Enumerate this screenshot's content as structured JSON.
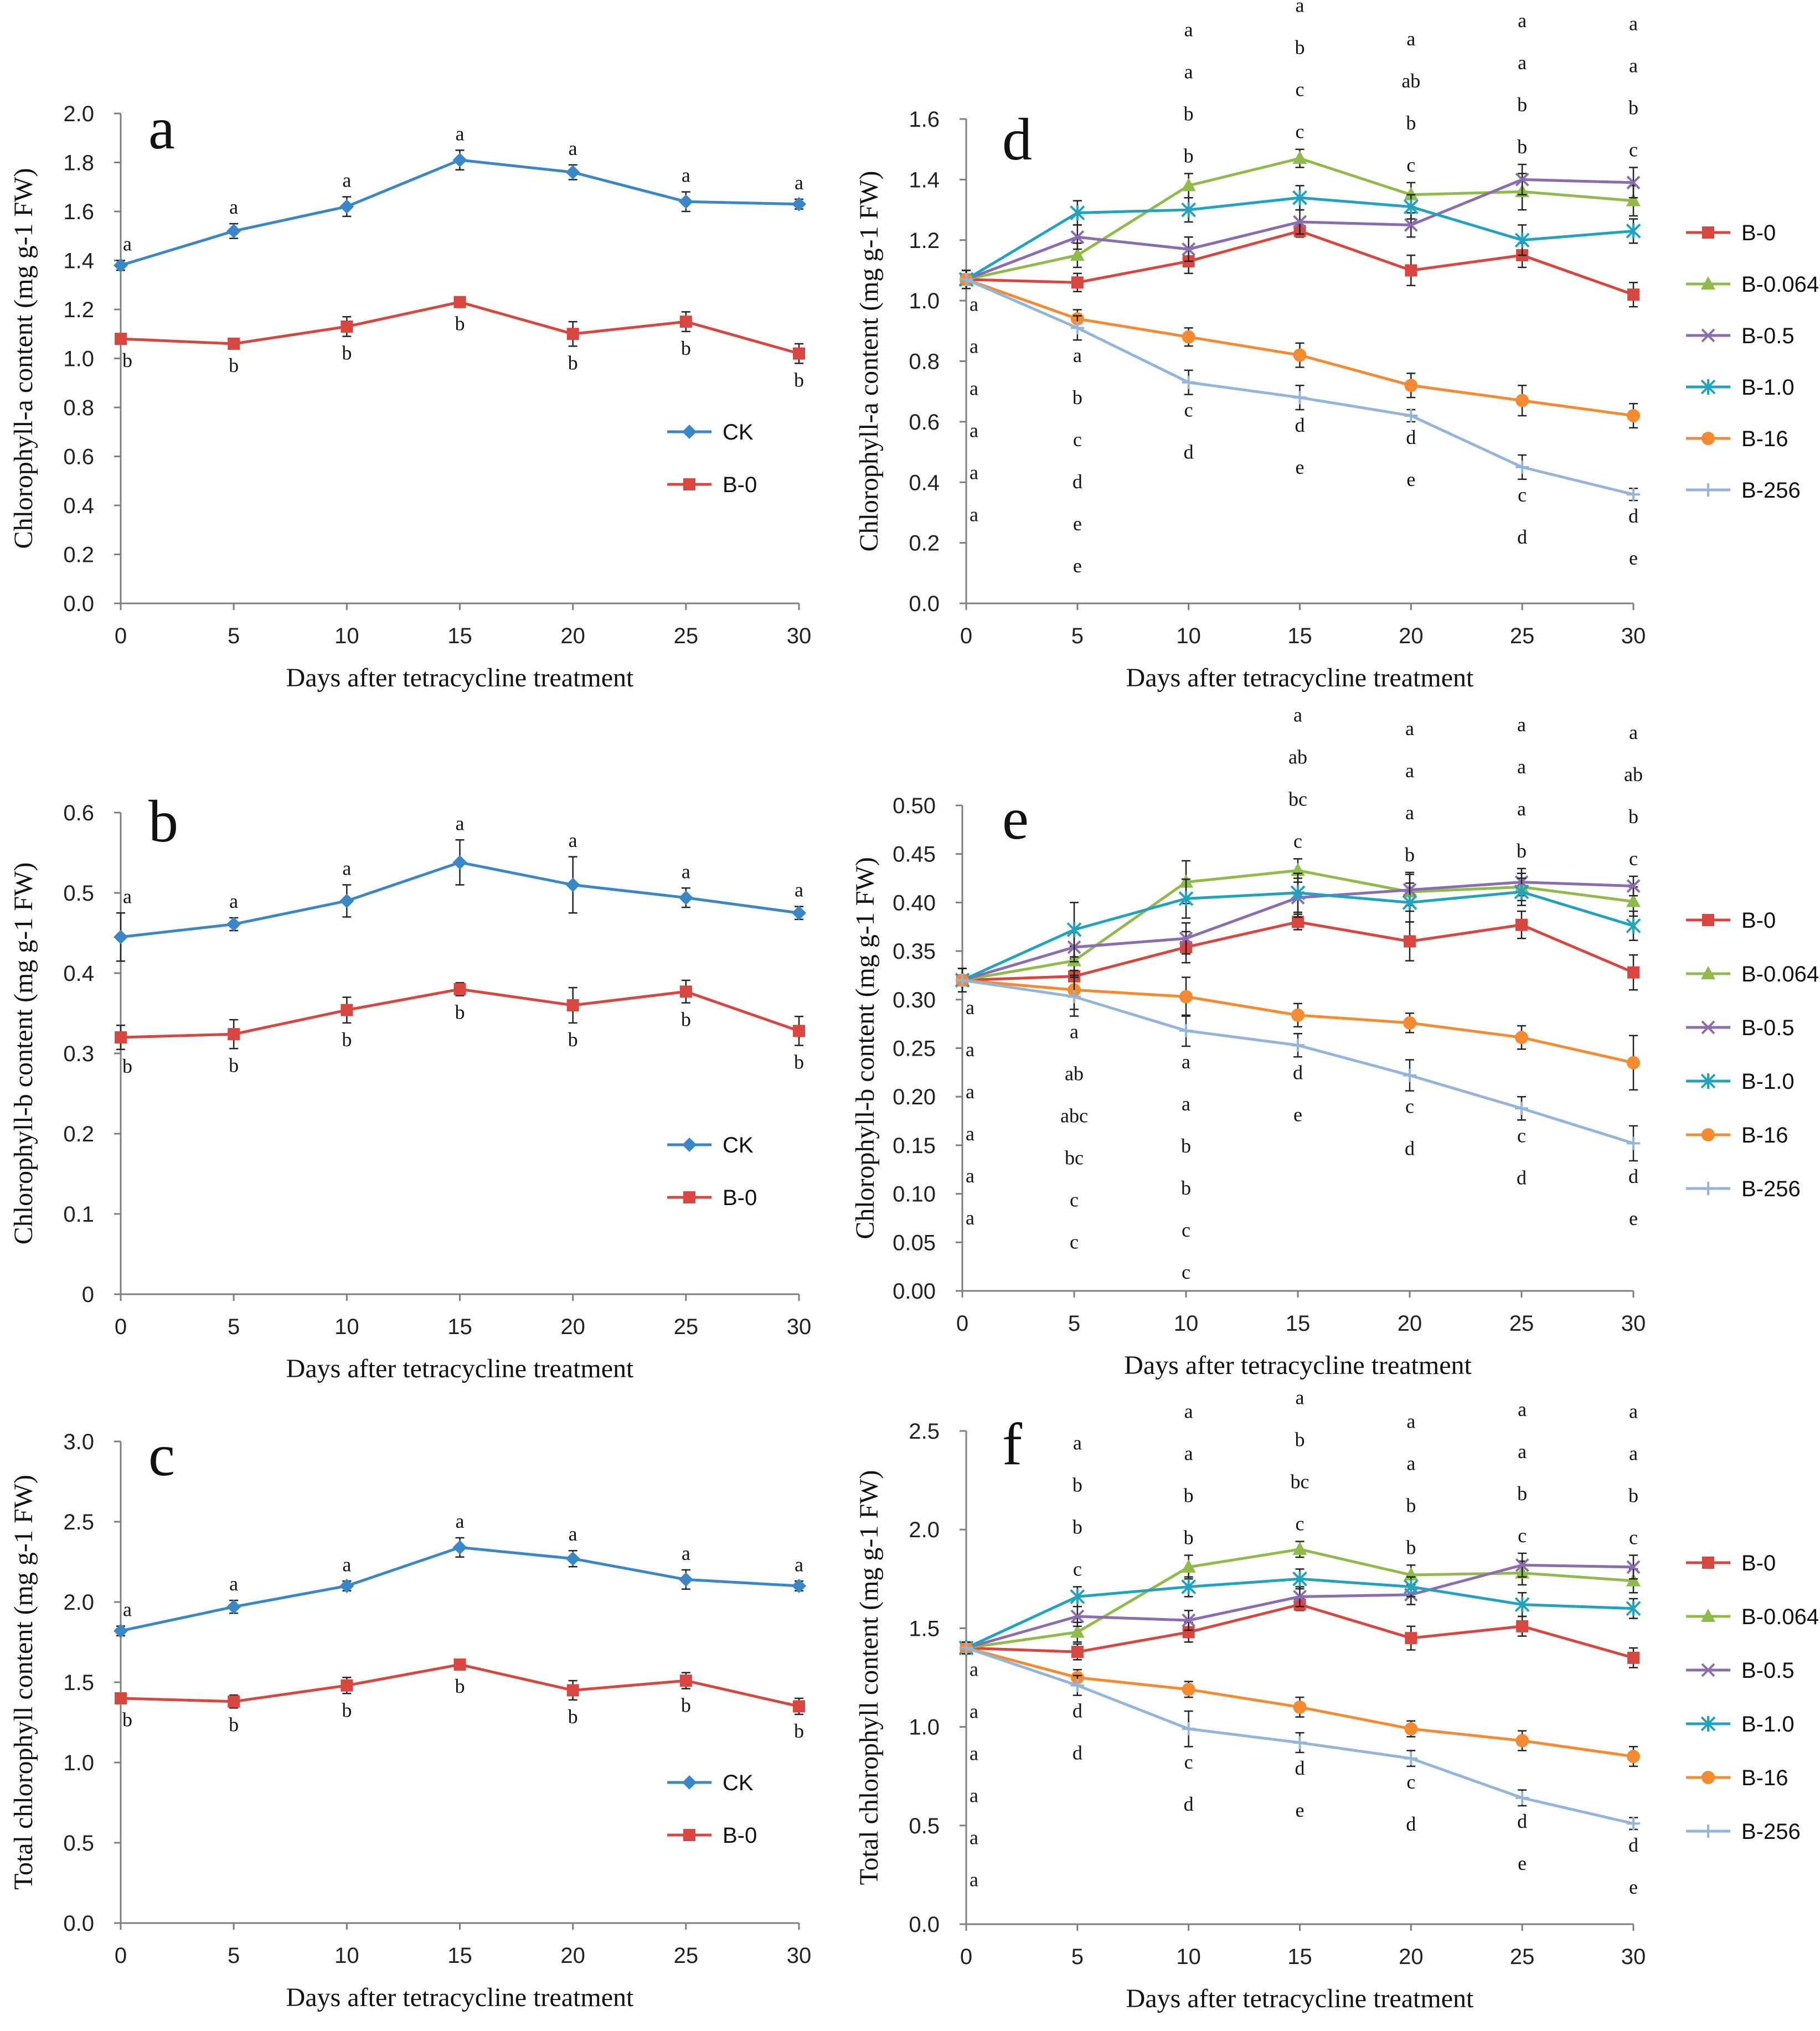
{
  "x_axis_label": "Days after tetracycline treatment",
  "colors": {
    "CK": "#3A87C8",
    "B-0": "#D9463F",
    "B-0.064": "#8EBB4A",
    "B-0.5": "#8D6BB0",
    "B-1.0": "#1FA3C1",
    "B-16": "#F58A30",
    "B-256": "#93B5DC"
  },
  "chart_data": [
    {
      "panel": "a",
      "type": "line",
      "ylabel": "Chlorophyll-a content (mg g-1 FW)",
      "ylim": [
        0,
        2.0
      ],
      "yticks": [
        "0.0",
        "0.2",
        "0.4",
        "0.6",
        "0.8",
        "1.0",
        "1.2",
        "1.4",
        "1.6",
        "1.8",
        "2.0"
      ],
      "x": [
        0,
        5,
        10,
        15,
        20,
        25,
        30
      ],
      "xticks": [
        "0",
        "5",
        "10",
        "15",
        "20",
        "25",
        "30"
      ],
      "legend": [
        "CK",
        "B-0"
      ],
      "series": [
        {
          "name": "CK",
          "marker": "diamond",
          "values": [
            1.38,
            1.52,
            1.62,
            1.81,
            1.76,
            1.64,
            1.63
          ],
          "errors": [
            0.02,
            0.03,
            0.04,
            0.04,
            0.03,
            0.04,
            0.02
          ],
          "letters": [
            "a",
            "a",
            "a",
            "a",
            "a",
            "a",
            "a"
          ]
        },
        {
          "name": "B-0",
          "marker": "square",
          "values": [
            1.08,
            1.06,
            1.13,
            1.23,
            1.1,
            1.15,
            1.02
          ],
          "errors": [
            0.02,
            0.02,
            0.04,
            0.02,
            0.05,
            0.04,
            0.04
          ],
          "letters": [
            "b",
            "b",
            "b",
            "b",
            "b",
            "b",
            "b"
          ]
        }
      ]
    },
    {
      "panel": "b",
      "type": "line",
      "ylabel": "Chlorophyll-b content (mg g-1 FW)",
      "ylim": [
        0,
        0.6
      ],
      "yticks": [
        "0",
        "0.1",
        "0.2",
        "0.3",
        "0.4",
        "0.5",
        "0.6"
      ],
      "x": [
        0,
        5,
        10,
        15,
        20,
        25,
        30
      ],
      "xticks": [
        "0",
        "5",
        "10",
        "15",
        "20",
        "25",
        "30"
      ],
      "legend": [
        "CK",
        "B-0"
      ],
      "series": [
        {
          "name": "CK",
          "marker": "diamond",
          "values": [
            0.445,
            0.461,
            0.49,
            0.538,
            0.51,
            0.494,
            0.475
          ],
          "errors": [
            0.03,
            0.008,
            0.02,
            0.028,
            0.035,
            0.012,
            0.008
          ],
          "letters": [
            "a",
            "a",
            "a",
            "a",
            "a",
            "a",
            "a"
          ]
        },
        {
          "name": "B-0",
          "marker": "square",
          "values": [
            0.32,
            0.324,
            0.354,
            0.38,
            0.36,
            0.377,
            0.328
          ],
          "errors": [
            0.015,
            0.018,
            0.016,
            0.008,
            0.022,
            0.014,
            0.018
          ],
          "letters": [
            "b",
            "b",
            "b",
            "b",
            "b",
            "b",
            "b"
          ]
        }
      ]
    },
    {
      "panel": "c",
      "type": "line",
      "ylabel": "Total chlorophyll content (mg g-1 FW)",
      "ylim": [
        0,
        3.0
      ],
      "yticks": [
        "0.0",
        "0.5",
        "1.0",
        "1.5",
        "2.0",
        "2.5",
        "3.0"
      ],
      "x": [
        0,
        5,
        10,
        15,
        20,
        25,
        30
      ],
      "xticks": [
        "0",
        "5",
        "10",
        "15",
        "20",
        "25",
        "30"
      ],
      "legend": [
        "CK",
        "B-0"
      ],
      "series": [
        {
          "name": "CK",
          "marker": "diamond",
          "values": [
            1.82,
            1.97,
            2.1,
            2.34,
            2.27,
            2.14,
            2.1
          ],
          "errors": [
            0.03,
            0.04,
            0.03,
            0.06,
            0.05,
            0.06,
            0.03
          ],
          "letters": [
            "a",
            "a",
            "a",
            "a",
            "a",
            "a",
            "a"
          ]
        },
        {
          "name": "B-0",
          "marker": "square",
          "values": [
            1.4,
            1.38,
            1.48,
            1.61,
            1.45,
            1.51,
            1.35
          ],
          "errors": [
            0.03,
            0.04,
            0.05,
            0.03,
            0.06,
            0.05,
            0.05
          ],
          "letters": [
            "b",
            "b",
            "b",
            "b",
            "b",
            "b",
            "b"
          ]
        }
      ]
    },
    {
      "panel": "d",
      "type": "line",
      "ylabel": "Chlorophyll-a content (mg g-1 FW)",
      "ylim": [
        0,
        1.6
      ],
      "yticks": [
        "0.0",
        "0.2",
        "0.4",
        "0.6",
        "0.8",
        "1.0",
        "1.2",
        "1.4",
        "1.6"
      ],
      "x": [
        0,
        5,
        10,
        15,
        20,
        25,
        30
      ],
      "xticks": [
        "0",
        "5",
        "10",
        "15",
        "20",
        "25",
        "30"
      ],
      "legend": [
        "B-0",
        "B-0.064",
        "B-0.5",
        "B-1.0",
        "B-16",
        "B-256"
      ],
      "series": [
        {
          "name": "B-0",
          "marker": "square",
          "values": [
            1.07,
            1.06,
            1.13,
            1.23,
            1.1,
            1.15,
            1.02
          ],
          "errors": [
            0.03,
            0.03,
            0.04,
            0.02,
            0.05,
            0.04,
            0.04
          ]
        },
        {
          "name": "B-0.064",
          "marker": "triangle",
          "values": [
            1.07,
            1.15,
            1.38,
            1.47,
            1.35,
            1.36,
            1.33
          ],
          "errors": [
            0.03,
            0.04,
            0.04,
            0.03,
            0.04,
            0.06,
            0.05
          ]
        },
        {
          "name": "B-0.5",
          "marker": "x",
          "values": [
            1.07,
            1.21,
            1.17,
            1.26,
            1.25,
            1.4,
            1.39
          ],
          "errors": [
            0.03,
            0.04,
            0.04,
            0.04,
            0.04,
            0.05,
            0.05
          ]
        },
        {
          "name": "B-1.0",
          "marker": "star",
          "values": [
            1.07,
            1.29,
            1.3,
            1.34,
            1.31,
            1.2,
            1.23
          ],
          "errors": [
            0.03,
            0.04,
            0.04,
            0.04,
            0.04,
            0.05,
            0.04
          ]
        },
        {
          "name": "B-16",
          "marker": "circle",
          "values": [
            1.07,
            0.94,
            0.88,
            0.82,
            0.72,
            0.67,
            0.62
          ],
          "errors": [
            0.03,
            0.03,
            0.03,
            0.04,
            0.04,
            0.05,
            0.04
          ]
        },
        {
          "name": "B-256",
          "marker": "plus",
          "values": [
            1.07,
            0.91,
            0.73,
            0.68,
            0.62,
            0.45,
            0.36
          ],
          "errors": [
            0.03,
            0.04,
            0.04,
            0.04,
            0.02,
            0.04,
            0.02
          ]
        }
      ],
      "letters_above": [
        [],
        [],
        [
          "a",
          "a",
          "b",
          "b"
        ],
        [
          "a",
          "b",
          "c",
          "c"
        ],
        [
          "a",
          "ab",
          "b",
          "c"
        ],
        [
          "a",
          "a",
          "b",
          "b"
        ],
        [
          "a",
          "a",
          "b",
          "c"
        ]
      ],
      "letters_below": [
        [
          "a",
          "a",
          "a",
          "a",
          "a",
          "a"
        ],
        [
          "a",
          "b",
          "c",
          "d",
          "e",
          "e"
        ],
        [
          "c",
          "d"
        ],
        [
          "d",
          "e"
        ],
        [
          "d",
          "e"
        ],
        [
          "c",
          "d"
        ],
        [
          "d",
          "e"
        ]
      ]
    },
    {
      "panel": "e",
      "type": "line",
      "ylabel": "Chlorophyll-b content (mg g-1 FW)",
      "ylim": [
        0,
        0.5
      ],
      "yticks": [
        "0.00",
        "0.05",
        "0.10",
        "0.15",
        "0.20",
        "0.25",
        "0.30",
        "0.35",
        "0.40",
        "0.45",
        "0.50"
      ],
      "x": [
        0,
        5,
        10,
        15,
        20,
        25,
        30
      ],
      "xticks": [
        "0",
        "5",
        "10",
        "15",
        "20",
        "25",
        "30"
      ],
      "legend": [
        "B-0",
        "B-0.064",
        "B-0.5",
        "B-1.0",
        "B-16",
        "B-256"
      ],
      "series": [
        {
          "name": "B-0",
          "marker": "square",
          "values": [
            0.32,
            0.324,
            0.354,
            0.38,
            0.36,
            0.377,
            0.328
          ],
          "errors": [
            0.012,
            0.018,
            0.016,
            0.008,
            0.02,
            0.014,
            0.018
          ]
        },
        {
          "name": "B-0.064",
          "marker": "triangle",
          "values": [
            0.32,
            0.34,
            0.421,
            0.433,
            0.411,
            0.416,
            0.401
          ],
          "errors": [
            0.012,
            0.015,
            0.022,
            0.012,
            0.02,
            0.014,
            0.015
          ]
        },
        {
          "name": "B-0.5",
          "marker": "x",
          "values": [
            0.32,
            0.354,
            0.363,
            0.405,
            0.413,
            0.421,
            0.417
          ],
          "errors": [
            0.012,
            0.015,
            0.016,
            0.02,
            0.016,
            0.014,
            0.01
          ]
        },
        {
          "name": "B-1.0",
          "marker": "star",
          "values": [
            0.32,
            0.372,
            0.404,
            0.41,
            0.4,
            0.411,
            0.376
          ],
          "errors": [
            0.012,
            0.028,
            0.02,
            0.02,
            0.02,
            0.014,
            0.015
          ]
        },
        {
          "name": "B-16",
          "marker": "circle",
          "values": [
            0.32,
            0.31,
            0.303,
            0.284,
            0.276,
            0.261,
            0.235
          ],
          "errors": [
            0.012,
            0.02,
            0.02,
            0.012,
            0.01,
            0.012,
            0.028
          ]
        },
        {
          "name": "B-256",
          "marker": "plus",
          "values": [
            0.32,
            0.303,
            0.268,
            0.253,
            0.222,
            0.188,
            0.152
          ],
          "errors": [
            0.012,
            0.02,
            0.016,
            0.012,
            0.016,
            0.012,
            0.018
          ]
        }
      ],
      "letters_above": [
        [],
        [],
        [],
        [
          "a",
          "ab",
          "bc",
          "c"
        ],
        [
          "a",
          "a",
          "a",
          "b"
        ],
        [
          "a",
          "a",
          "a",
          "b"
        ],
        [
          "a",
          "ab",
          "b",
          "c"
        ]
      ],
      "letters_below": [
        [
          "a",
          "a",
          "a",
          "a",
          "a",
          "a"
        ],
        [
          "a",
          "ab",
          "abc",
          "bc",
          "c",
          "c"
        ],
        [
          "a",
          "a",
          "b",
          "b",
          "c",
          "c"
        ],
        [
          "d",
          "e"
        ],
        [
          "c",
          "d"
        ],
        [
          "c",
          "d"
        ],
        [
          "d",
          "e"
        ]
      ]
    },
    {
      "panel": "f",
      "type": "line",
      "ylabel": "Total chlorophyll content (mg g-1 FW)",
      "ylim": [
        0,
        2.5
      ],
      "yticks": [
        "0.0",
        "0.5",
        "1.0",
        "1.5",
        "2.0",
        "2.5"
      ],
      "x": [
        0,
        5,
        10,
        15,
        20,
        25,
        30
      ],
      "xticks": [
        "0",
        "5",
        "10",
        "15",
        "20",
        "25",
        "30"
      ],
      "legend": [
        "B-0",
        "B-0.064",
        "B-0.5",
        "B-1.0",
        "B-16",
        "B-256"
      ],
      "series": [
        {
          "name": "B-0",
          "marker": "square",
          "values": [
            1.4,
            1.38,
            1.48,
            1.62,
            1.45,
            1.51,
            1.35
          ],
          "errors": [
            0.03,
            0.04,
            0.05,
            0.03,
            0.06,
            0.05,
            0.05
          ]
        },
        {
          "name": "B-0.064",
          "marker": "triangle",
          "values": [
            1.4,
            1.48,
            1.81,
            1.9,
            1.77,
            1.78,
            1.74
          ],
          "errors": [
            0.03,
            0.05,
            0.06,
            0.04,
            0.05,
            0.06,
            0.06
          ]
        },
        {
          "name": "B-0.5",
          "marker": "x",
          "values": [
            1.4,
            1.56,
            1.54,
            1.66,
            1.67,
            1.82,
            1.81
          ],
          "errors": [
            0.03,
            0.05,
            0.05,
            0.05,
            0.05,
            0.06,
            0.06
          ]
        },
        {
          "name": "B-1.0",
          "marker": "star",
          "values": [
            1.4,
            1.66,
            1.71,
            1.75,
            1.71,
            1.62,
            1.6
          ],
          "errors": [
            0.03,
            0.05,
            0.05,
            0.05,
            0.05,
            0.06,
            0.05
          ]
        },
        {
          "name": "B-16",
          "marker": "circle",
          "values": [
            1.4,
            1.25,
            1.19,
            1.1,
            0.99,
            0.93,
            0.85
          ],
          "errors": [
            0.03,
            0.04,
            0.04,
            0.05,
            0.04,
            0.05,
            0.05
          ]
        },
        {
          "name": "B-256",
          "marker": "plus",
          "values": [
            1.4,
            1.21,
            0.99,
            0.92,
            0.84,
            0.64,
            0.51
          ],
          "errors": [
            0.03,
            0.05,
            0.09,
            0.05,
            0.04,
            0.04,
            0.03
          ]
        }
      ],
      "letters_above": [
        [],
        [
          "a",
          "b",
          "b",
          "c"
        ],
        [
          "a",
          "a",
          "b",
          "b"
        ],
        [
          "a",
          "b",
          "bc",
          "c"
        ],
        [
          "a",
          "a",
          "b",
          "b"
        ],
        [
          "a",
          "a",
          "b",
          "c"
        ],
        [
          "a",
          "a",
          "b",
          "c"
        ]
      ],
      "letters_below": [
        [
          "a",
          "a",
          "a",
          "a",
          "a",
          "a"
        ],
        [
          "d",
          "d"
        ],
        [
          "c",
          "d"
        ],
        [
          "d",
          "e"
        ],
        [
          "c",
          "d"
        ],
        [
          "d",
          "e"
        ],
        [
          "d",
          "e"
        ]
      ]
    }
  ]
}
